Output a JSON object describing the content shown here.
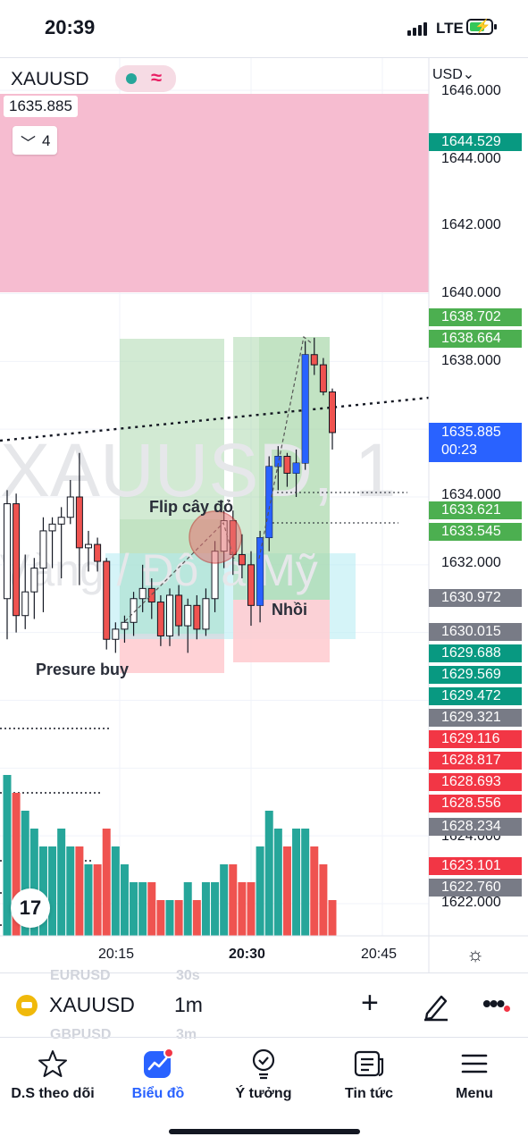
{
  "status_bar": {
    "time": "20:39",
    "network": "LTE"
  },
  "chart": {
    "symbol": "XAUUSD",
    "last_price": "1635.885",
    "indicator_count": "4",
    "currency": "USD",
    "watermark_symbol": "XAUUSD, 1",
    "watermark_desc": "Vàng / Đô la Mỹ",
    "price_scale": [
      "1646.000",
      "1644.000",
      "1642.000",
      "1640.000",
      "1638.000",
      "1634.000",
      "1632.000",
      "1624.000",
      "1622.000"
    ],
    "price_tags": [
      {
        "label": "1644.529",
        "color": "#089981"
      },
      {
        "label": "1638.702",
        "color": "#4caf50"
      },
      {
        "label": "1638.664",
        "color": "#4caf50"
      },
      {
        "label": "1633.621",
        "color": "#4caf50"
      },
      {
        "label": "1633.545",
        "color": "#4caf50"
      },
      {
        "label": "1630.972",
        "color": "#787b86"
      },
      {
        "label": "1630.015",
        "color": "#787b86"
      },
      {
        "label": "1629.688",
        "color": "#089981"
      },
      {
        "label": "1629.569",
        "color": "#089981"
      },
      {
        "label": "1629.472",
        "color": "#089981"
      },
      {
        "label": "1629.321",
        "color": "#787b86"
      },
      {
        "label": "1629.116",
        "color": "#f23645"
      },
      {
        "label": "1628.817",
        "color": "#f23645"
      },
      {
        "label": "1628.693",
        "color": "#f23645"
      },
      {
        "label": "1628.556",
        "color": "#f23645"
      },
      {
        "label": "1628.234",
        "color": "#787b86"
      },
      {
        "label": "1623.101",
        "color": "#f23645"
      },
      {
        "label": "1622.760",
        "color": "#787b86"
      }
    ],
    "current_price": {
      "value": "1635.885",
      "countdown": "00:23"
    },
    "time_labels": [
      "20:15",
      "20:30",
      "20:45"
    ],
    "annotations": {
      "flip": "Flip cây đỏ",
      "pressure": "Presure buy",
      "add": "Nhồi"
    },
    "colors": {
      "up": "#26a69a",
      "down": "#ef5350",
      "zone_pink": "#f5b8cd",
      "zone_green": "#a5d6a7",
      "zone_cyan": "#b2ebf2"
    }
  },
  "chart_data": {
    "type": "candlestick",
    "symbol": "XAUUSD",
    "interval": "1m",
    "ylim": [
      1621.5,
      1646.0
    ],
    "x_ticks": [
      "20:15",
      "20:30",
      "20:45"
    ],
    "candles": [
      {
        "o": 1631.0,
        "h": 1634.2,
        "l": 1629.8,
        "c": 1633.8
      },
      {
        "o": 1633.8,
        "h": 1634.1,
        "l": 1630.0,
        "c": 1630.5
      },
      {
        "o": 1630.5,
        "h": 1632.3,
        "l": 1630.1,
        "c": 1631.2
      },
      {
        "o": 1631.2,
        "h": 1632.2,
        "l": 1630.4,
        "c": 1631.9
      },
      {
        "o": 1631.9,
        "h": 1633.4,
        "l": 1630.6,
        "c": 1633.0
      },
      {
        "o": 1633.0,
        "h": 1633.4,
        "l": 1631.9,
        "c": 1633.2
      },
      {
        "o": 1633.2,
        "h": 1633.7,
        "l": 1631.6,
        "c": 1633.4
      },
      {
        "o": 1633.4,
        "h": 1634.5,
        "l": 1633.2,
        "c": 1634.0
      },
      {
        "o": 1634.0,
        "h": 1635.3,
        "l": 1631.4,
        "c": 1632.5
      },
      {
        "o": 1632.5,
        "h": 1633.0,
        "l": 1631.8,
        "c": 1632.6
      },
      {
        "o": 1632.6,
        "h": 1632.8,
        "l": 1631.8,
        "c": 1632.1
      },
      {
        "o": 1632.1,
        "h": 1632.2,
        "l": 1629.5,
        "c": 1629.8
      },
      {
        "o": 1629.8,
        "h": 1630.3,
        "l": 1629.4,
        "c": 1630.1
      },
      {
        "o": 1630.1,
        "h": 1630.5,
        "l": 1629.7,
        "c": 1630.3
      },
      {
        "o": 1630.3,
        "h": 1631.2,
        "l": 1629.9,
        "c": 1631.0
      },
      {
        "o": 1631.0,
        "h": 1632.0,
        "l": 1630.6,
        "c": 1631.3
      },
      {
        "o": 1631.3,
        "h": 1631.6,
        "l": 1630.4,
        "c": 1630.9
      },
      {
        "o": 1630.9,
        "h": 1631.1,
        "l": 1629.6,
        "c": 1629.9
      },
      {
        "o": 1629.9,
        "h": 1631.3,
        "l": 1629.6,
        "c": 1631.1
      },
      {
        "o": 1631.1,
        "h": 1631.4,
        "l": 1629.9,
        "c": 1630.2
      },
      {
        "o": 1630.2,
        "h": 1631.0,
        "l": 1629.4,
        "c": 1630.8
      },
      {
        "o": 1630.8,
        "h": 1631.1,
        "l": 1629.8,
        "c": 1630.1
      },
      {
        "o": 1630.1,
        "h": 1631.3,
        "l": 1629.9,
        "c": 1631.0
      },
      {
        "o": 1631.0,
        "h": 1632.7,
        "l": 1630.6,
        "c": 1632.4
      },
      {
        "o": 1632.4,
        "h": 1633.6,
        "l": 1631.9,
        "c": 1633.3
      },
      {
        "o": 1633.3,
        "h": 1633.6,
        "l": 1631.7,
        "c": 1632.3
      },
      {
        "o": 1632.3,
        "h": 1632.9,
        "l": 1631.6,
        "c": 1632.0
      },
      {
        "o": 1632.0,
        "h": 1632.4,
        "l": 1630.2,
        "c": 1630.8
      },
      {
        "o": 1630.8,
        "h": 1633.0,
        "l": 1630.3,
        "c": 1632.8
      },
      {
        "o": 1632.8,
        "h": 1635.2,
        "l": 1632.4,
        "c": 1634.9
      },
      {
        "o": 1634.9,
        "h": 1635.5,
        "l": 1634.2,
        "c": 1635.2
      },
      {
        "o": 1635.2,
        "h": 1635.3,
        "l": 1634.3,
        "c": 1634.7
      },
      {
        "o": 1634.7,
        "h": 1635.4,
        "l": 1634.0,
        "c": 1635.0
      },
      {
        "o": 1635.0,
        "h": 1638.6,
        "l": 1634.8,
        "c": 1638.2
      },
      {
        "o": 1638.2,
        "h": 1638.7,
        "l": 1637.6,
        "c": 1637.9
      },
      {
        "o": 1637.9,
        "h": 1638.1,
        "l": 1637.0,
        "c": 1637.1
      },
      {
        "o": 1637.1,
        "h": 1637.2,
        "l": 1635.4,
        "c": 1635.9
      }
    ],
    "volume": [
      9,
      8,
      7,
      6,
      5,
      5,
      6,
      5,
      5,
      4,
      4,
      6,
      5,
      4,
      3,
      3,
      3,
      2,
      2,
      2,
      3,
      2,
      3,
      3,
      4,
      4,
      3,
      3,
      5,
      7,
      6,
      5,
      6,
      6,
      5,
      4,
      2
    ]
  },
  "toolbar": {
    "symbol": "XAUUSD",
    "interval": "1m",
    "ghost_above": "EURUSD",
    "ghost_above_tf": "30s",
    "ghost_below": "GBPUSD",
    "ghost_below_tf": "3m"
  },
  "nav": [
    {
      "label": "D.S theo dõi",
      "icon": "star-icon"
    },
    {
      "label": "Biểu đồ",
      "icon": "chart-icon"
    },
    {
      "label": "Ý tưởng",
      "icon": "idea-icon"
    },
    {
      "label": "Tin tức",
      "icon": "news-icon"
    },
    {
      "label": "Menu",
      "icon": "menu-icon"
    }
  ]
}
